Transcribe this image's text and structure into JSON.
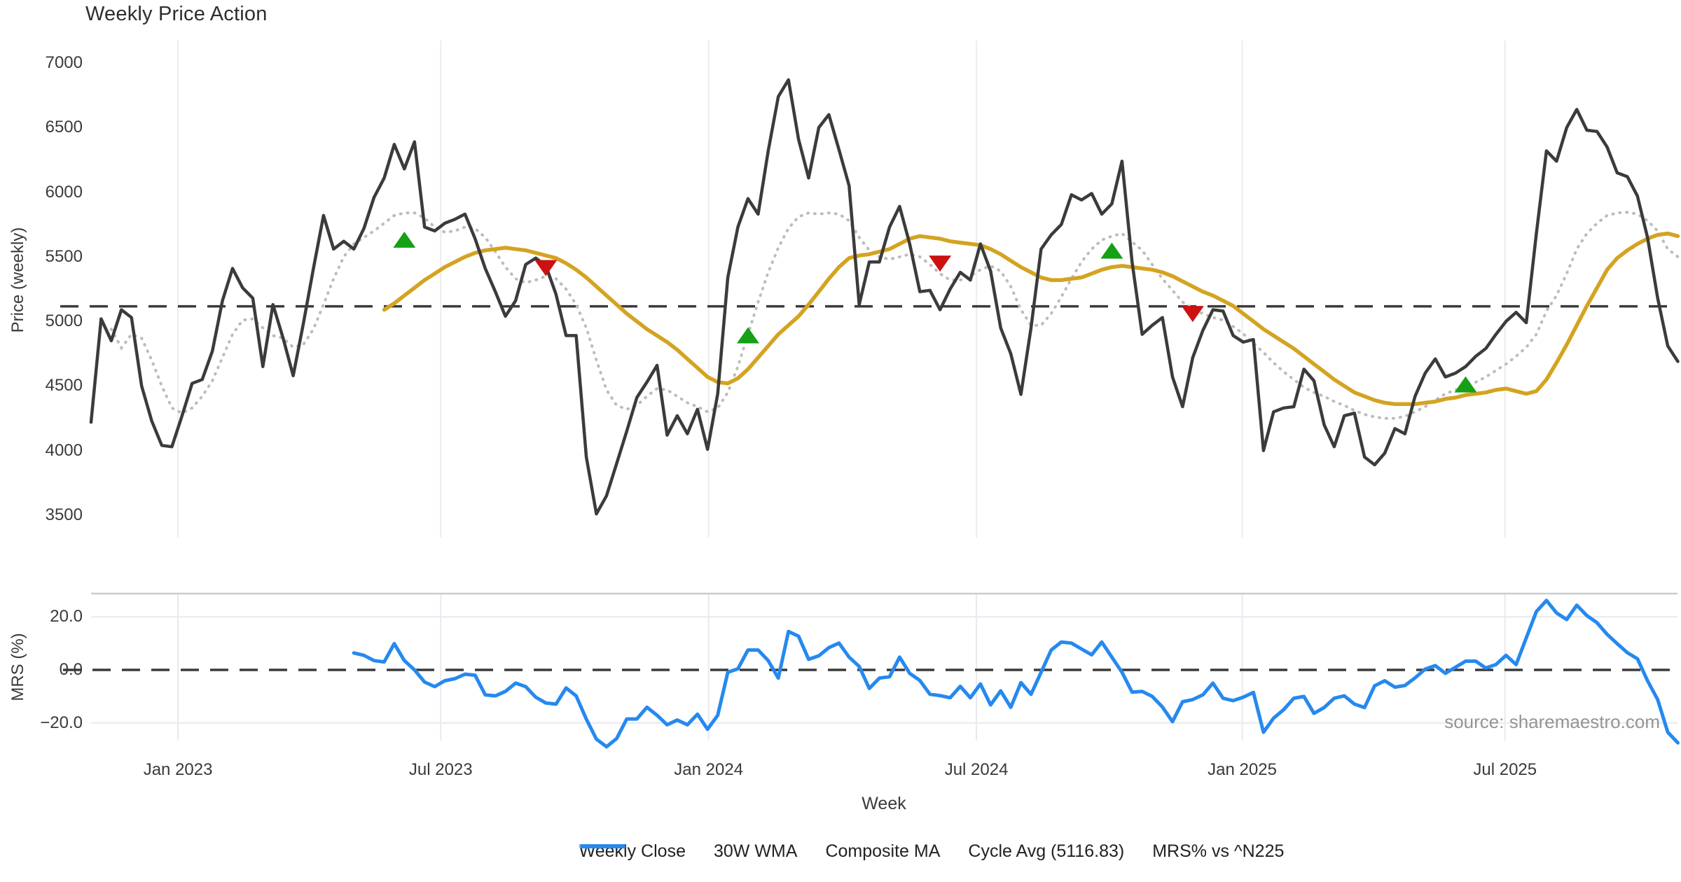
{
  "title": "Weekly Price Action",
  "axes": {
    "price_label": "Price (weekly)",
    "mrs_label": "MRS (%)",
    "x_label": "Week"
  },
  "source": "source: sharemaestro.com",
  "colors": {
    "close": "#3b3b3b",
    "wma": "#d4a321",
    "composite": "#bcbcbc",
    "cycle_dash": "#3a3a3a",
    "mrs_blue": "#2589ef",
    "buy_green": "#15a015",
    "sell_red": "#cc1111",
    "grid_top": "#ececec",
    "grid_bottom": "#e9e9ef",
    "panel_border": "#cccccc",
    "text": "#3a3a3a",
    "source_text": "#949494"
  },
  "legend": [
    {
      "label": "Weekly Close",
      "kind": "solid",
      "color": "#3b3b3b"
    },
    {
      "label": "30W WMA",
      "kind": "solid",
      "color": "#d4a321"
    },
    {
      "label": "Composite MA",
      "kind": "dotted",
      "color": "#bcbcbc"
    },
    {
      "label": "Cycle Avg (5116.83)",
      "kind": "dashed",
      "color": "#3a3a3a"
    },
    {
      "label": "MRS% vs ^N225",
      "kind": "solid",
      "color": "#2589ef"
    }
  ],
  "x_axis": {
    "label": "Week",
    "ticks": [
      {
        "label": "Jan 2023",
        "week": 8.6
      },
      {
        "label": "Jul 2023",
        "week": 34.6
      },
      {
        "label": "Jan 2024",
        "week": 61.1
      },
      {
        "label": "Jul 2024",
        "week": 87.6
      },
      {
        "label": "Jan 2025",
        "week": 113.9
      },
      {
        "label": "Jul 2025",
        "week": 139.9
      }
    ]
  },
  "chart_data": [
    {
      "type": "line",
      "panel": "price",
      "title": "Weekly Price Action",
      "ylabel": "Price (weekly)",
      "ylim": [
        3340,
        7160
      ],
      "yticks": [
        7000,
        6500,
        6000,
        5500,
        5000,
        4500,
        4000,
        3500
      ],
      "grid": "vertical-only",
      "cycle_avg": 5116.83,
      "series": [
        {
          "name": "Weekly Close",
          "start": 0,
          "values": [
            4220,
            5020,
            4850,
            5090,
            5030,
            4500,
            4230,
            4040,
            4030,
            4270,
            4520,
            4550,
            4770,
            5160,
            5410,
            5260,
            5180,
            4650,
            5130,
            4870,
            4580,
            4980,
            5410,
            5820,
            5560,
            5620,
            5560,
            5720,
            5960,
            6110,
            6370,
            6180,
            6390,
            5730,
            5700,
            5760,
            5790,
            5830,
            5640,
            5410,
            5230,
            5040,
            5160,
            5440,
            5490,
            5430,
            5210,
            4890,
            4890,
            3950,
            3510,
            3650,
            3900,
            4150,
            4410,
            4530,
            4660,
            4120,
            4270,
            4130,
            4320,
            4010,
            4440,
            5340,
            5730,
            5950,
            5830,
            6320,
            6740,
            6870,
            6410,
            6110,
            6500,
            6600,
            6330,
            6050,
            5130,
            5460,
            5460,
            5730,
            5890,
            5600,
            5230,
            5240,
            5090,
            5250,
            5380,
            5320,
            5600,
            5390,
            4950,
            4750,
            4435,
            4950,
            5560,
            5670,
            5750,
            5980,
            5940,
            5990,
            5830,
            5910,
            6240,
            5460,
            4900,
            4970,
            5030,
            4570,
            4340,
            4720,
            4930,
            5090,
            5080,
            4890,
            4840,
            4860,
            4000,
            4300,
            4330,
            4340,
            4630,
            4540,
            4200,
            4030,
            4270,
            4290,
            3950,
            3890,
            3980,
            4170,
            4130,
            4420,
            4600,
            4710,
            4570,
            4600,
            4650,
            4730,
            4790,
            4900,
            5000,
            5070,
            4990,
            5680,
            6320,
            6240,
            6500,
            6640,
            6480,
            6470,
            6350,
            6150,
            6120,
            5970,
            5650,
            5180,
            4810,
            4690
          ]
        },
        {
          "name": "30W WMA",
          "start": 29,
          "values": [
            5090,
            5140,
            5200,
            5260,
            5320,
            5370,
            5420,
            5460,
            5500,
            5530,
            5550,
            5560,
            5570,
            5560,
            5550,
            5530,
            5510,
            5490,
            5450,
            5400,
            5340,
            5270,
            5200,
            5130,
            5060,
            5000,
            4940,
            4890,
            4840,
            4780,
            4710,
            4640,
            4570,
            4530,
            4520,
            4560,
            4630,
            4720,
            4810,
            4900,
            4970,
            5040,
            5130,
            5230,
            5330,
            5420,
            5490,
            5510,
            5520,
            5540,
            5560,
            5600,
            5640,
            5660,
            5650,
            5640,
            5620,
            5610,
            5600,
            5590,
            5560,
            5520,
            5470,
            5420,
            5380,
            5340,
            5320,
            5320,
            5330,
            5340,
            5370,
            5400,
            5420,
            5430,
            5420,
            5410,
            5400,
            5380,
            5350,
            5310,
            5270,
            5230,
            5200,
            5160,
            5120,
            5060,
            5000,
            4940,
            4890,
            4840,
            4790,
            4730,
            4670,
            4610,
            4550,
            4500,
            4450,
            4420,
            4390,
            4370,
            4360,
            4360,
            4360,
            4370,
            4380,
            4400,
            4410,
            4430,
            4440,
            4450,
            4470,
            4480,
            4460,
            4440,
            4460,
            4550,
            4680,
            4820,
            4970,
            5120,
            5260,
            5400,
            5490,
            5550,
            5600,
            5640,
            5670,
            5680,
            5660
          ]
        },
        {
          "name": "Composite MA",
          "start": 2,
          "values": [
            4940,
            4795,
            4900,
            4870,
            4700,
            4500,
            4330,
            4290,
            4330,
            4420,
            4540,
            4720,
            4900,
            5010,
            5020,
            4950,
            4890,
            4870,
            4800,
            4820,
            4940,
            5130,
            5330,
            5500,
            5600,
            5650,
            5700,
            5760,
            5820,
            5840,
            5840,
            5800,
            5730,
            5690,
            5700,
            5730,
            5720,
            5650,
            5540,
            5420,
            5330,
            5300,
            5320,
            5350,
            5330,
            5250,
            5130,
            4950,
            4700,
            4470,
            4350,
            4320,
            4350,
            4420,
            4480,
            4470,
            4420,
            4370,
            4340,
            4300,
            4330,
            4450,
            4650,
            4900,
            5150,
            5380,
            5570,
            5720,
            5810,
            5840,
            5830,
            5840,
            5830,
            5780,
            5650,
            5550,
            5500,
            5480,
            5500,
            5520,
            5500,
            5440,
            5370,
            5320,
            5320,
            5350,
            5400,
            5430,
            5390,
            5270,
            5090,
            4970,
            4970,
            5060,
            5190,
            5330,
            5460,
            5560,
            5630,
            5660,
            5680,
            5615,
            5550,
            5440,
            5330,
            5240,
            5150,
            5100,
            5060,
            5030,
            5010,
            4960,
            4905,
            4830,
            4760,
            4680,
            4610,
            4550,
            4490,
            4450,
            4420,
            4380,
            4350,
            4310,
            4280,
            4260,
            4250,
            4250,
            4265,
            4300,
            4340,
            4390,
            4440,
            4470,
            4500,
            4530,
            4570,
            4620,
            4670,
            4730,
            4800,
            4900,
            5080,
            5200,
            5370,
            5560,
            5680,
            5760,
            5820,
            5840,
            5845,
            5830,
            5780,
            5700,
            5560,
            5500
          ]
        }
      ],
      "markers": {
        "buy_up_triangles": [
          [
            31,
            5630
          ],
          [
            65,
            4890
          ],
          [
            101,
            5545
          ],
          [
            136,
            4510
          ]
        ],
        "sell_down_triangles": [
          [
            45,
            5415
          ],
          [
            84,
            5450
          ],
          [
            109,
            5060
          ]
        ]
      }
    },
    {
      "type": "line",
      "panel": "mrs",
      "ylabel": "MRS (%)",
      "ylim": [
        -28.8,
        26.7
      ],
      "yticks": [
        20.0,
        0.0,
        -20.0
      ],
      "ytick_labels": [
        "20.0",
        "0.0",
        "−20.0"
      ],
      "zero_line": 0,
      "series": [
        {
          "name": "MRS% vs ^N225",
          "start": 26,
          "values": [
            6.4,
            5.5,
            3.5,
            3.0,
            9.9,
            3.5,
            0.0,
            -4.6,
            -6.3,
            -4.1,
            -3.3,
            -1.6,
            -2.0,
            -9.4,
            -9.8,
            -8.1,
            -5.0,
            -6.3,
            -10.3,
            -12.5,
            -12.9,
            -6.8,
            -9.8,
            -18.6,
            -26.1,
            -29.0,
            -25.9,
            -18.5,
            -18.5,
            -14.1,
            -17.1,
            -20.7,
            -18.9,
            -20.7,
            -16.7,
            -22.4,
            -17.1,
            -0.9,
            0.4,
            7.5,
            7.5,
            3.5,
            -3.1,
            14.5,
            12.7,
            4.0,
            5.3,
            8.4,
            10.1,
            4.8,
            1.3,
            -7.0,
            -3.1,
            -2.6,
            4.8,
            -1.3,
            -4.0,
            -9.2,
            -9.7,
            -10.5,
            -6.2,
            -10.5,
            -5.3,
            -13.2,
            -7.9,
            -14.1,
            -4.8,
            -9.2,
            -0.9,
            7.5,
            10.5,
            10.1,
            7.9,
            5.7,
            10.5,
            4.8,
            -0.9,
            -8.4,
            -8.1,
            -10.0,
            -14.0,
            -19.5,
            -12.0,
            -11.2,
            -9.4,
            -5.0,
            -10.7,
            -11.6,
            -10.3,
            -8.5,
            -23.5,
            -18.2,
            -15.0,
            -10.7,
            -10.0,
            -16.4,
            -14.2,
            -10.7,
            -9.8,
            -12.9,
            -14.2,
            -6.0,
            -4.1,
            -6.5,
            -5.9,
            -3.0,
            0.3,
            1.6,
            -1.3,
            1.0,
            3.3,
            3.3,
            0.7,
            2.0,
            5.5,
            2.0,
            12.1,
            22.0,
            26.2,
            21.5,
            19.0,
            24.4,
            20.5,
            17.8,
            13.4,
            9.9,
            6.5,
            4.2,
            -4.1,
            -11.2,
            -23.5,
            -27.5
          ]
        }
      ]
    }
  ]
}
